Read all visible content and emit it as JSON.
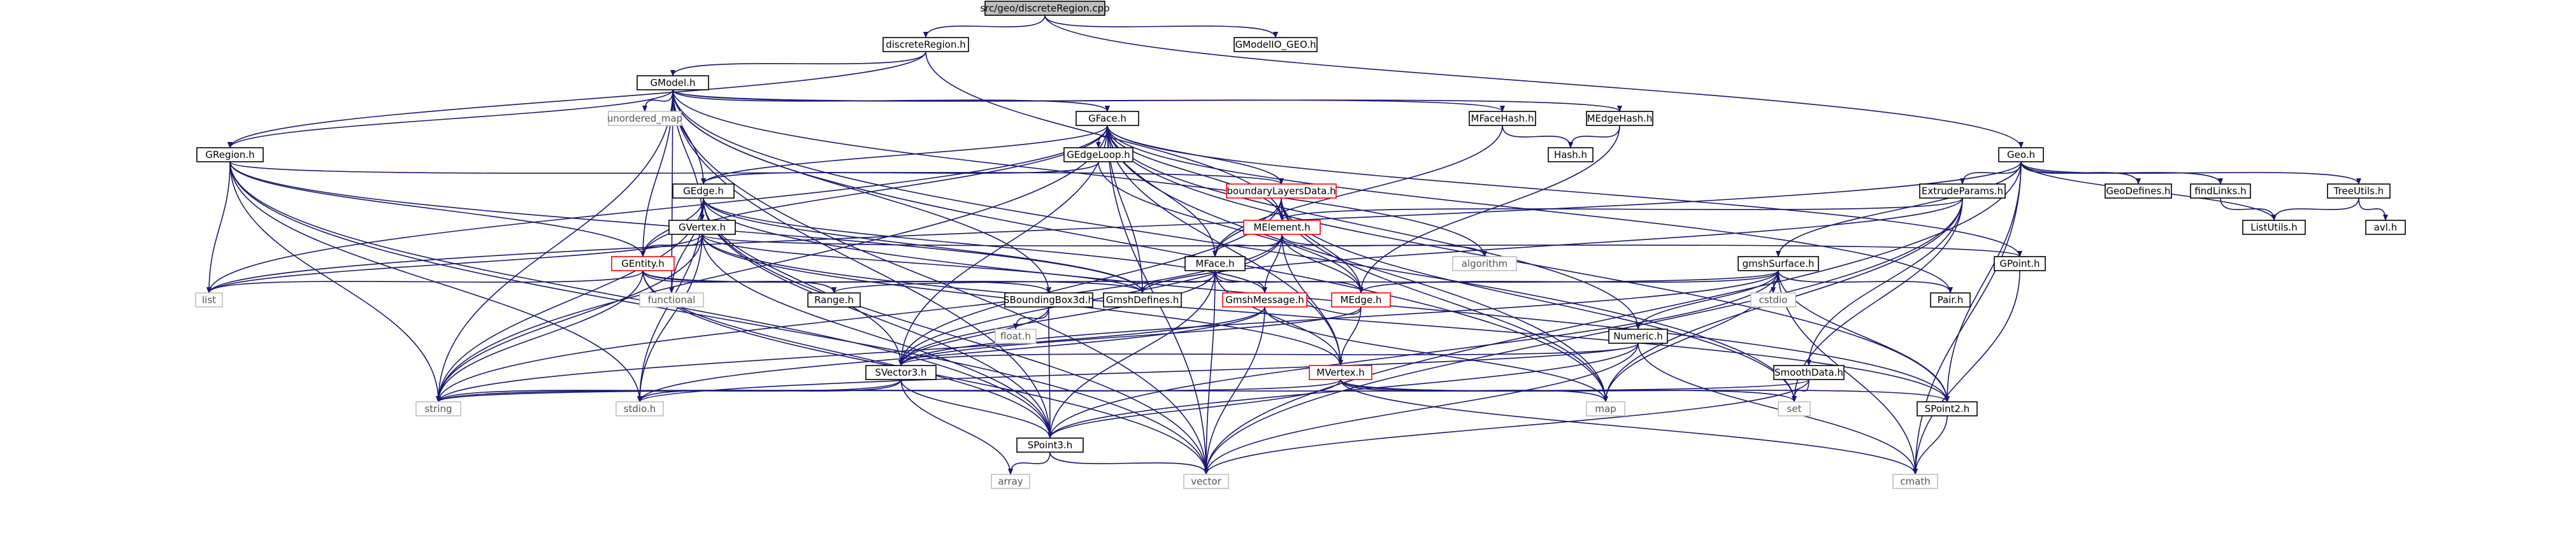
{
  "colors": {
    "edge": "#191970",
    "border_normal": "#000000",
    "border_truncated": "#ff0000",
    "border_external": "#bfbfbf",
    "fill_root": "#bfbfbf",
    "fill_node": "#ffffff",
    "text_normal": "#000000",
    "text_external": "#555555"
  },
  "nodes": [
    {
      "id": "root",
      "label": "src/geo/discreteRegion.cpp",
      "kind": "root"
    },
    {
      "id": "discreteRegion_h",
      "label": "discreteRegion.h",
      "kind": "normal"
    },
    {
      "id": "GModelIO_GEO_h",
      "label": "GModelIO_GEO.h",
      "kind": "normal"
    },
    {
      "id": "Geo_h",
      "label": "Geo.h",
      "kind": "normal"
    },
    {
      "id": "GModel_h",
      "label": "GModel.h",
      "kind": "normal"
    },
    {
      "id": "unordered_map",
      "label": "unordered_map",
      "kind": "external"
    },
    {
      "id": "GFace_h",
      "label": "GFace.h",
      "kind": "normal"
    },
    {
      "id": "MFaceHash_h",
      "label": "MFaceHash.h",
      "kind": "normal"
    },
    {
      "id": "MEdgeHash_h",
      "label": "MEdgeHash.h",
      "kind": "normal"
    },
    {
      "id": "GRegion_h",
      "label": "GRegion.h",
      "kind": "normal"
    },
    {
      "id": "GEdgeLoop_h",
      "label": "GEdgeLoop.h",
      "kind": "normal"
    },
    {
      "id": "Hash_h",
      "label": "Hash.h",
      "kind": "normal"
    },
    {
      "id": "boundaryLayersData_h",
      "label": "boundaryLayersData.h",
      "kind": "truncated"
    },
    {
      "id": "GEdge_h",
      "label": "GEdge.h",
      "kind": "normal"
    },
    {
      "id": "ExtrudeParams_h",
      "label": "ExtrudeParams.h",
      "kind": "normal"
    },
    {
      "id": "GeoDefines_h",
      "label": "GeoDefines.h",
      "kind": "normal"
    },
    {
      "id": "findLinks_h",
      "label": "findLinks.h",
      "kind": "normal"
    },
    {
      "id": "TreeUtils_h",
      "label": "TreeUtils.h",
      "kind": "normal"
    },
    {
      "id": "ListUtils_h",
      "label": "ListUtils.h",
      "kind": "normal"
    },
    {
      "id": "avl_h",
      "label": "avl.h",
      "kind": "normal"
    },
    {
      "id": "GVertex_h",
      "label": "GVertex.h",
      "kind": "normal"
    },
    {
      "id": "MElement_h",
      "label": "MElement.h",
      "kind": "truncated"
    },
    {
      "id": "GEntity_h",
      "label": "GEntity.h",
      "kind": "truncated"
    },
    {
      "id": "MFace_h",
      "label": "MFace.h",
      "kind": "normal"
    },
    {
      "id": "algorithm",
      "label": "algorithm",
      "kind": "external"
    },
    {
      "id": "gmshSurface_h",
      "label": "gmshSurface.h",
      "kind": "normal"
    },
    {
      "id": "GPoint_h",
      "label": "GPoint.h",
      "kind": "normal"
    },
    {
      "id": "list",
      "label": "list",
      "kind": "external"
    },
    {
      "id": "functional",
      "label": "functional",
      "kind": "external"
    },
    {
      "id": "Range_h",
      "label": "Range.h",
      "kind": "normal"
    },
    {
      "id": "SBoundingBox3d_h",
      "label": "SBoundingBox3d.h",
      "kind": "normal"
    },
    {
      "id": "GmshDefines_h",
      "label": "GmshDefines.h",
      "kind": "normal"
    },
    {
      "id": "GmshMessage_h",
      "label": "GmshMessage.h",
      "kind": "truncated"
    },
    {
      "id": "MEdge_h",
      "label": "MEdge.h",
      "kind": "truncated"
    },
    {
      "id": "cstdio",
      "label": "cstdio",
      "kind": "external"
    },
    {
      "id": "Pair_h",
      "label": "Pair.h",
      "kind": "normal"
    },
    {
      "id": "Numeric_h",
      "label": "Numeric.h",
      "kind": "normal"
    },
    {
      "id": "float_h",
      "label": "float.h",
      "kind": "external"
    },
    {
      "id": "SVector3_h",
      "label": "SVector3.h",
      "kind": "normal"
    },
    {
      "id": "MVertex_h",
      "label": "MVertex.h",
      "kind": "truncated"
    },
    {
      "id": "SmoothData_h",
      "label": "SmoothData.h",
      "kind": "normal"
    },
    {
      "id": "string",
      "label": "string",
      "kind": "external"
    },
    {
      "id": "stdio_h",
      "label": "stdio.h",
      "kind": "external"
    },
    {
      "id": "map",
      "label": "map",
      "kind": "external"
    },
    {
      "id": "set",
      "label": "set",
      "kind": "external"
    },
    {
      "id": "SPoint2_h",
      "label": "SPoint2.h",
      "kind": "normal"
    },
    {
      "id": "SPoint3_h",
      "label": "SPoint3.h",
      "kind": "normal"
    },
    {
      "id": "array",
      "label": "array",
      "kind": "external"
    },
    {
      "id": "vector",
      "label": "vector",
      "kind": "external"
    },
    {
      "id": "cmath",
      "label": "cmath",
      "kind": "external"
    }
  ],
  "edges": [
    [
      "root",
      "discreteRegion_h"
    ],
    [
      "root",
      "GModelIO_GEO_h"
    ],
    [
      "root",
      "Geo_h"
    ],
    [
      "discreteRegion_h",
      "GModel_h"
    ],
    [
      "discreteRegion_h",
      "GRegion_h"
    ],
    [
      "discreteRegion_h",
      "MElement_h"
    ],
    [
      "GModel_h",
      "unordered_map"
    ],
    [
      "GModel_h",
      "GFace_h"
    ],
    [
      "GModel_h",
      "MFaceHash_h"
    ],
    [
      "GModel_h",
      "MEdgeHash_h"
    ],
    [
      "GModel_h",
      "GRegion_h"
    ],
    [
      "GModel_h",
      "GEdge_h"
    ],
    [
      "GModel_h",
      "GVertex_h"
    ],
    [
      "GModel_h",
      "GEntity_h"
    ],
    [
      "GModel_h",
      "SBoundingBox3d_h"
    ],
    [
      "GModel_h",
      "algorithm"
    ],
    [
      "GModel_h",
      "functional"
    ],
    [
      "GModel_h",
      "string"
    ],
    [
      "GModel_h",
      "vector"
    ],
    [
      "GModel_h",
      "map"
    ],
    [
      "GModel_h",
      "set"
    ],
    [
      "GModel_h",
      "SPoint3_h"
    ],
    [
      "GFace_h",
      "GEdgeLoop_h"
    ],
    [
      "GFace_h",
      "boundaryLayersData_h"
    ],
    [
      "GFace_h",
      "GEdge_h"
    ],
    [
      "GFace_h",
      "GEntity_h"
    ],
    [
      "GFace_h",
      "GPoint_h"
    ],
    [
      "GFace_h",
      "MFace_h"
    ],
    [
      "GFace_h",
      "MElement_h"
    ],
    [
      "GFace_h",
      "Numeric_h"
    ],
    [
      "GFace_h",
      "GmshDefines_h"
    ],
    [
      "GFace_h",
      "SPoint2_h"
    ],
    [
      "GFace_h",
      "SVector3_h"
    ],
    [
      "GFace_h",
      "Pair_h"
    ],
    [
      "GFace_h",
      "list"
    ],
    [
      "GFace_h",
      "map"
    ],
    [
      "GFace_h",
      "string"
    ],
    [
      "GFace_h",
      "vector"
    ],
    [
      "GFace_h",
      "MVertex_h"
    ],
    [
      "MFaceHash_h",
      "Hash_h"
    ],
    [
      "MFaceHash_h",
      "MFace_h"
    ],
    [
      "MEdgeHash_h",
      "Hash_h"
    ],
    [
      "MEdgeHash_h",
      "MEdge_h"
    ],
    [
      "GRegion_h",
      "GEntity_h"
    ],
    [
      "GRegion_h",
      "boundaryLayersData_h"
    ],
    [
      "GRegion_h",
      "list"
    ],
    [
      "GRegion_h",
      "string"
    ],
    [
      "GRegion_h",
      "vector"
    ],
    [
      "GRegion_h",
      "stdio_h"
    ],
    [
      "GRegion_h",
      "GmshDefines_h"
    ],
    [
      "GRegion_h",
      "SPoint3_h"
    ],
    [
      "GEdgeLoop_h",
      "GEdge_h"
    ],
    [
      "GEdgeLoop_h",
      "MEdge_h"
    ],
    [
      "boundaryLayersData_h",
      "MElement_h"
    ],
    [
      "boundaryLayersData_h",
      "MEdge_h"
    ],
    [
      "boundaryLayersData_h",
      "MFace_h"
    ],
    [
      "boundaryLayersData_h",
      "SVector3_h"
    ],
    [
      "boundaryLayersData_h",
      "set"
    ],
    [
      "boundaryLayersData_h",
      "map"
    ],
    [
      "GEdge_h",
      "GVertex_h"
    ],
    [
      "GEdge_h",
      "GEntity_h"
    ],
    [
      "GEdge_h",
      "SPoint3_h"
    ],
    [
      "GEdge_h",
      "SPoint2_h"
    ],
    [
      "GEdge_h",
      "SVector3_h"
    ],
    [
      "GEdge_h",
      "GmshDefines_h"
    ],
    [
      "GEdge_h",
      "GmshMessage_h"
    ],
    [
      "GEdge_h",
      "string"
    ],
    [
      "GEdge_h",
      "vector"
    ],
    [
      "GEdge_h",
      "stdio_h"
    ],
    [
      "GEdge_h",
      "functional"
    ],
    [
      "Geo_h",
      "ExtrudeParams_h"
    ],
    [
      "Geo_h",
      "GeoDefines_h"
    ],
    [
      "Geo_h",
      "findLinks_h"
    ],
    [
      "Geo_h",
      "TreeUtils_h"
    ],
    [
      "Geo_h",
      "ListUtils_h"
    ],
    [
      "Geo_h",
      "gmshSurface_h"
    ],
    [
      "Geo_h",
      "list"
    ],
    [
      "Geo_h",
      "vector"
    ],
    [
      "Geo_h",
      "cmath"
    ],
    [
      "Geo_h",
      "SPoint2_h"
    ],
    [
      "findLinks_h",
      "ListUtils_h"
    ],
    [
      "TreeUtils_h",
      "ListUtils_h"
    ],
    [
      "TreeUtils_h",
      "avl_h"
    ],
    [
      "ExtrudeParams_h",
      "MElement_h"
    ],
    [
      "ExtrudeParams_h",
      "SmoothData_h"
    ],
    [
      "ExtrudeParams_h",
      "vector"
    ],
    [
      "ExtrudeParams_h",
      "map"
    ],
    [
      "ExtrudeParams_h",
      "set"
    ],
    [
      "ExtrudeParams_h",
      "GmshDefines_h"
    ],
    [
      "GVertex_h",
      "GEntity_h"
    ],
    [
      "GVertex_h",
      "GPoint_h"
    ],
    [
      "GVertex_h",
      "SPoint2_h"
    ],
    [
      "GVertex_h",
      "SPoint3_h"
    ],
    [
      "GVertex_h",
      "GmshDefines_h"
    ],
    [
      "GVertex_h",
      "list"
    ],
    [
      "GVertex_h",
      "string"
    ],
    [
      "GVertex_h",
      "stdio_h"
    ],
    [
      "GVertex_h",
      "MVertex_h"
    ],
    [
      "MElement_h",
      "MFace_h"
    ],
    [
      "MElement_h",
      "MEdge_h"
    ],
    [
      "MElement_h",
      "MVertex_h"
    ],
    [
      "MElement_h",
      "GmshMessage_h"
    ],
    [
      "MElement_h",
      "algorithm"
    ],
    [
      "MElement_h",
      "string"
    ],
    [
      "MElement_h",
      "SVector3_h"
    ],
    [
      "GEntity_h",
      "Range_h"
    ],
    [
      "GEntity_h",
      "SBoundingBox3d_h"
    ],
    [
      "GEntity_h",
      "SPoint3_h"
    ],
    [
      "GEntity_h",
      "list"
    ],
    [
      "GEntity_h",
      "string"
    ],
    [
      "GEntity_h",
      "vector"
    ],
    [
      "GEntity_h",
      "GmshDefines_h"
    ],
    [
      "MFace_h",
      "MEdge_h"
    ],
    [
      "MFace_h",
      "MVertex_h"
    ],
    [
      "MFace_h",
      "SVector3_h"
    ],
    [
      "MFace_h",
      "GmshMessage_h"
    ],
    [
      "MFace_h",
      "vector"
    ],
    [
      "MFace_h",
      "GmshDefines_h"
    ],
    [
      "MFace_h",
      "SPoint3_h"
    ],
    [
      "gmshSurface_h",
      "Range_h"
    ],
    [
      "gmshSurface_h",
      "SPoint2_h"
    ],
    [
      "gmshSurface_h",
      "SPoint3_h"
    ],
    [
      "gmshSurface_h",
      "SVector3_h"
    ],
    [
      "gmshSurface_h",
      "Pair_h"
    ],
    [
      "gmshSurface_h",
      "Numeric_h"
    ],
    [
      "gmshSurface_h",
      "cstdio"
    ],
    [
      "gmshSurface_h",
      "cmath"
    ],
    [
      "gmshSurface_h",
      "map"
    ],
    [
      "gmshSurface_h",
      "MEdge_h"
    ],
    [
      "GPoint_h",
      "cmath"
    ],
    [
      "SBoundingBox3d_h",
      "float_h"
    ],
    [
      "SBoundingBox3d_h",
      "SPoint3_h"
    ],
    [
      "SBoundingBox3d_h",
      "SVector3_h"
    ],
    [
      "GmshMessage_h",
      "map"
    ],
    [
      "GmshMessage_h",
      "vector"
    ],
    [
      "GmshMessage_h",
      "string"
    ],
    [
      "GmshMessage_h",
      "stdio_h"
    ],
    [
      "MEdge_h",
      "MVertex_h"
    ],
    [
      "MEdge_h",
      "SVector3_h"
    ],
    [
      "MEdge_h",
      "GmshMessage_h"
    ],
    [
      "Numeric_h",
      "SPoint3_h"
    ],
    [
      "Numeric_h",
      "SVector3_h"
    ],
    [
      "Numeric_h",
      "vector"
    ],
    [
      "Numeric_h",
      "cmath"
    ],
    [
      "Numeric_h",
      "stdio_h"
    ],
    [
      "SVector3_h",
      "SPoint3_h"
    ],
    [
      "SVector3_h",
      "string"
    ],
    [
      "SVector3_h",
      "stdio_h"
    ],
    [
      "SVector3_h",
      "array"
    ],
    [
      "MVertex_h",
      "SPoint2_h"
    ],
    [
      "MVertex_h",
      "SPoint3_h"
    ],
    [
      "MVertex_h",
      "set"
    ],
    [
      "MVertex_h",
      "map"
    ],
    [
      "MVertex_h",
      "string"
    ],
    [
      "MVertex_h",
      "cmath"
    ],
    [
      "SmoothData_h",
      "set"
    ],
    [
      "SmoothData_h",
      "string"
    ],
    [
      "SmoothData_h",
      "vector"
    ],
    [
      "SPoint2_h",
      "cmath"
    ],
    [
      "SPoint3_h",
      "array"
    ],
    [
      "SPoint3_h",
      "vector"
    ]
  ]
}
